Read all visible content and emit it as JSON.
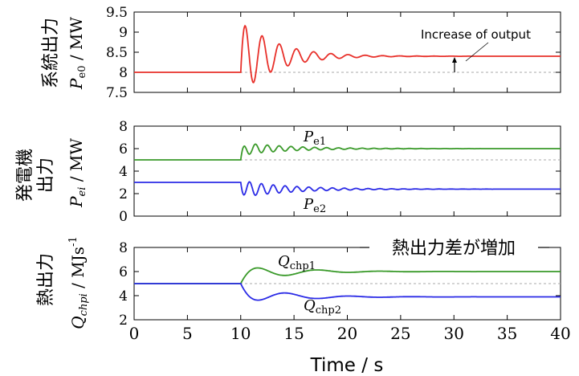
{
  "chart_data": [
    {
      "type": "line",
      "panel": "top",
      "ylabel_jp": "系統出力",
      "ylabel_sym": "P",
      "ylabel_sub": "e0",
      "ylabel_unit": " / MW",
      "ylim": [
        7.5,
        9.5
      ],
      "yticks": [
        "9.5",
        "9",
        "8.5",
        "8",
        "7.5"
      ],
      "xlim": [
        0,
        40
      ],
      "baseline": 8,
      "series": [
        {
          "color": "#e8302a",
          "initial": 8,
          "final": 8.4,
          "disturbance_time": 10
        }
      ],
      "annotation": "Increase of output"
    },
    {
      "type": "line",
      "panel": "middle",
      "ylabel_jp_1": "発電機",
      "ylabel_jp_2": "出力",
      "ylabel_sym": "P",
      "ylabel_sub": "ei",
      "ylabel_unit": " / MW",
      "ylim": [
        0,
        8
      ],
      "yticks": [
        "8",
        "6",
        "4",
        "2",
        "0"
      ],
      "xlim": [
        0,
        40
      ],
      "reference_lines": [
        5
      ],
      "series": [
        {
          "name": "Pe1",
          "sym": "P",
          "sub": "e1",
          "color": "#3a9a2a",
          "initial": 5,
          "final": 6
        },
        {
          "name": "Pe2",
          "sym": "P",
          "sub": "e2",
          "color": "#2b2be6",
          "initial": 3,
          "final": 2.4
        }
      ]
    },
    {
      "type": "line",
      "panel": "bottom",
      "ylabel_jp": "熱出力",
      "ylabel_sym": "Q",
      "ylabel_sub": "chpi",
      "ylabel_unit": " / MJs",
      "ylabel_sup": "-1",
      "ylim": [
        2,
        8
      ],
      "yticks": [
        "8",
        "6",
        "4",
        "2"
      ],
      "xlim": [
        0,
        40
      ],
      "xticks": [
        "0",
        "5",
        "10",
        "15",
        "20",
        "25",
        "30",
        "35",
        "40"
      ],
      "xlabel": "Time / s",
      "reference_lines": [
        5
      ],
      "series": [
        {
          "name": "Qchp1",
          "sym": "Q",
          "sub": "chp1",
          "color": "#3a9a2a",
          "initial": 5,
          "final": 6
        },
        {
          "name": "Qchp2",
          "sym": "Q",
          "sub": "chp2",
          "color": "#2b2be6",
          "initial": 5,
          "final": 3.9
        }
      ],
      "callout": "熱出力差が増加"
    }
  ]
}
